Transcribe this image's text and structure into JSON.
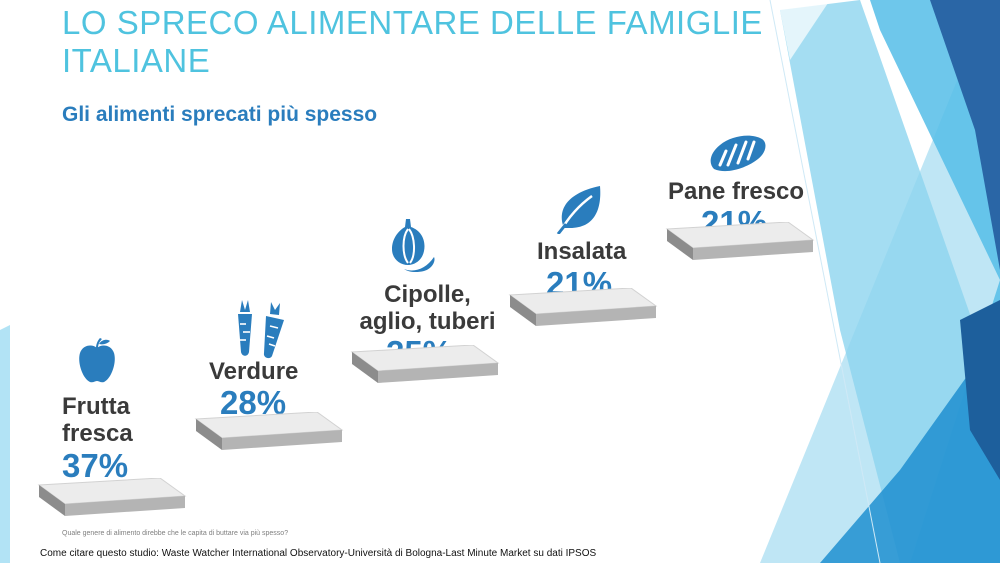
{
  "slide": {
    "title": "LO SPRECO ALIMENTARE DELLE FAMIGLIE ITALIANE",
    "subtitle": "Gli alimenti sprecati più spesso",
    "question": "Quale genere di alimento direbbe che le capita di buttare via più spesso?",
    "citation": "Come citare questo studio: Waste Watcher International Observatory-Università di Bologna-Last Minute Market su dati IPSOS",
    "accent_color": "#2a7dbd",
    "title_color": "#4fc3df"
  },
  "steps": [
    {
      "label_lines": [
        "Frutta",
        "fresca"
      ],
      "value": "37%",
      "icon": "apple-icon"
    },
    {
      "label_lines": [
        "Verdure"
      ],
      "value": "28%",
      "icon": "carrot-icon"
    },
    {
      "label_lines": [
        "Cipolle,",
        "aglio, tuberi"
      ],
      "value": "25%",
      "icon": "garlic-icon"
    },
    {
      "label_lines": [
        "Insalata"
      ],
      "value": "21%",
      "icon": "leaf-icon"
    },
    {
      "label_lines": [
        "Pane fresco"
      ],
      "value": "21%",
      "icon": "bread-icon"
    }
  ]
}
